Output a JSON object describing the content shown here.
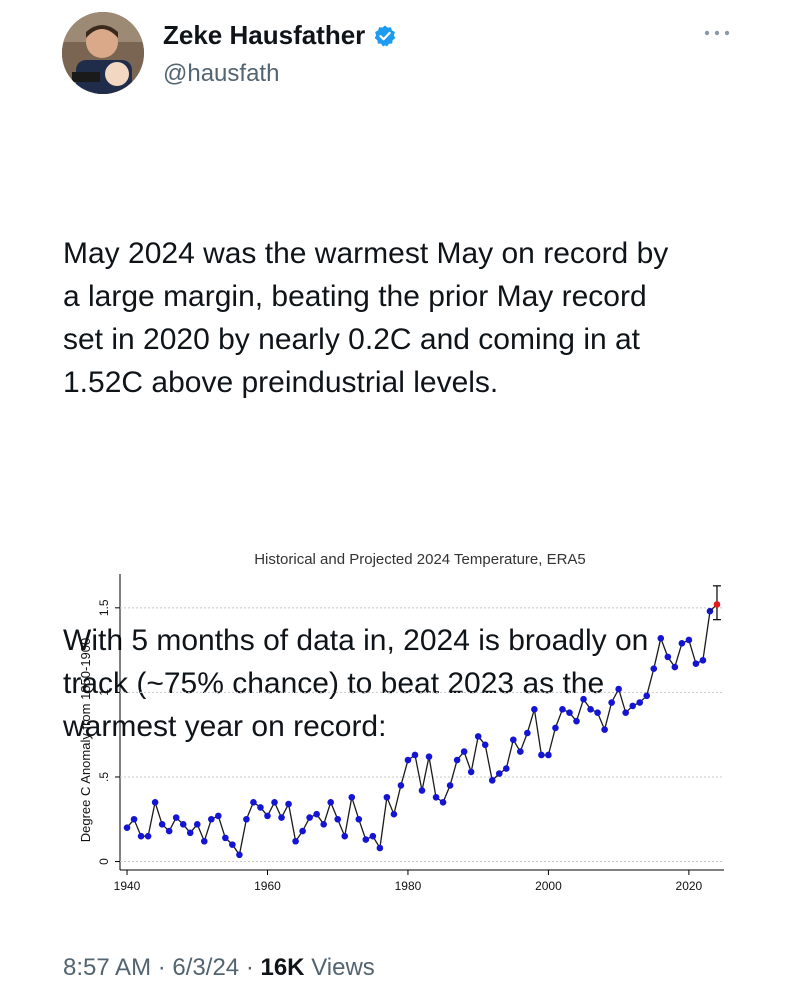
{
  "author": {
    "name": "Zeke Hausfather",
    "handle": "@hausfath",
    "verified": true,
    "accent_color": "#1d9bf0"
  },
  "tweet": {
    "paragraph1": "May 2024 was the warmest May on record by\na large margin, beating the prior May record\nset in 2020 by nearly 0.2C and coming in at\n1.52C above preindustrial levels.",
    "paragraph2": "With 5 months of data in, 2024 is broadly on\ntrack (~75% chance) to beat 2023 as the\nwarmest year on record:"
  },
  "meta": {
    "time": "8:57 AM",
    "date": "6/3/24",
    "views_count": "16K",
    "views_label": "Views"
  },
  "chart_data": {
    "type": "line",
    "title": "Historical and Projected 2024 Temperature, ERA5",
    "ylabel": "Degree C Anomaly from 1850-1900",
    "xlim": [
      1939,
      2025
    ],
    "ylim": [
      -0.05,
      1.7
    ],
    "xticks": [
      1940,
      1960,
      1980,
      2000,
      2020
    ],
    "yticks": [
      0,
      0.5,
      1,
      1.5
    ],
    "ytick_labels": [
      "0",
      ".5",
      "1",
      "1.5"
    ],
    "grid": true,
    "series": [
      {
        "color": "#1414d4",
        "x": [
          1940,
          1941,
          1942,
          1943,
          1944,
          1945,
          1946,
          1947,
          1948,
          1949,
          1950,
          1951,
          1952,
          1953,
          1954,
          1955,
          1956,
          1957,
          1958,
          1959,
          1960,
          1961,
          1962,
          1963,
          1964,
          1965,
          1966,
          1967,
          1968,
          1969,
          1970,
          1971,
          1972,
          1973,
          1974,
          1975,
          1976,
          1977,
          1978,
          1979,
          1980,
          1981,
          1982,
          1983,
          1984,
          1985,
          1986,
          1987,
          1988,
          1989,
          1990,
          1991,
          1992,
          1993,
          1994,
          1995,
          1996,
          1997,
          1998,
          1999,
          2000,
          2001,
          2002,
          2003,
          2004,
          2005,
          2006,
          2007,
          2008,
          2009,
          2010,
          2011,
          2012,
          2013,
          2014,
          2015,
          2016,
          2017,
          2018,
          2019,
          2020,
          2021,
          2022,
          2023
        ],
        "y": [
          0.2,
          0.25,
          0.15,
          0.15,
          0.35,
          0.22,
          0.18,
          0.26,
          0.22,
          0.17,
          0.22,
          0.12,
          0.25,
          0.27,
          0.14,
          0.1,
          0.04,
          0.25,
          0.35,
          0.32,
          0.27,
          0.35,
          0.26,
          0.34,
          0.12,
          0.18,
          0.26,
          0.28,
          0.22,
          0.35,
          0.25,
          0.15,
          0.38,
          0.25,
          0.13,
          0.15,
          0.08,
          0.38,
          0.28,
          0.45,
          0.6,
          0.63,
          0.42,
          0.62,
          0.38,
          0.35,
          0.45,
          0.6,
          0.65,
          0.53,
          0.74,
          0.69,
          0.48,
          0.52,
          0.55,
          0.72,
          0.65,
          0.76,
          0.9,
          0.63,
          0.63,
          0.79,
          0.9,
          0.88,
          0.83,
          0.96,
          0.9,
          0.88,
          0.78,
          0.94,
          1.02,
          0.88,
          0.92,
          0.94,
          0.98,
          1.14,
          1.32,
          1.21,
          1.15,
          1.29,
          1.31,
          1.17,
          1.19,
          1.48
        ]
      }
    ],
    "projection": {
      "x": 2024,
      "y": 1.52,
      "low": 1.43,
      "high": 1.63,
      "color": "#e01b1b"
    }
  }
}
